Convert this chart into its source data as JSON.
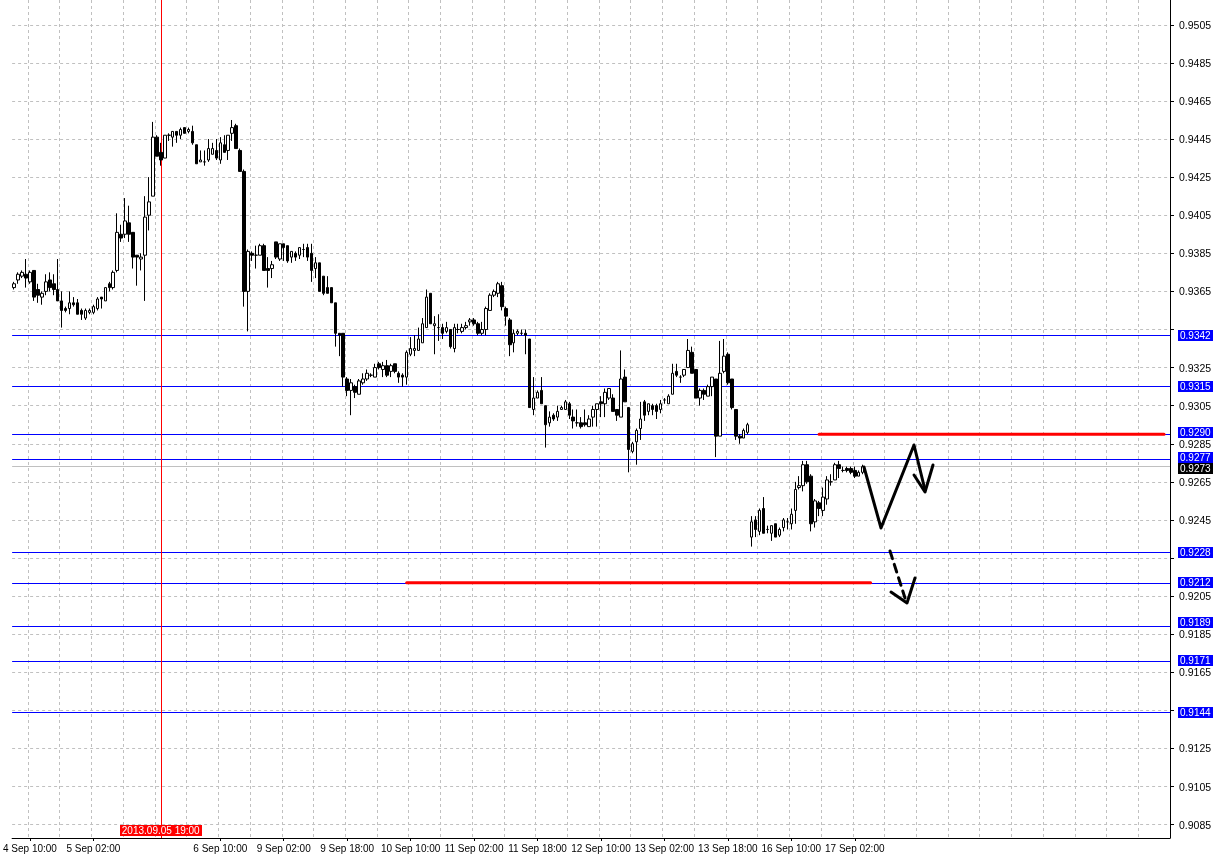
{
  "chart_data": {
    "type": "candlestick",
    "color": "#000000",
    "grid": true,
    "ylim": [
      0.9078,
      0.9518
    ],
    "yticks": [
      0.9085,
      0.9105,
      0.9125,
      {
        "value": 0.9145,
        "label": null
      },
      0.9165,
      0.9185,
      0.9205,
      {
        "value": 0.9225,
        "label": null
      },
      0.9245,
      0.9265,
      0.9285,
      0.9305,
      0.9325,
      {
        "value": 0.9345,
        "label": null
      },
      0.9365,
      0.9385,
      0.9405,
      0.9425,
      0.9445,
      0.9465,
      0.9485,
      0.9505
    ],
    "categories": [
      null,
      null,
      null,
      null,
      "4 Sep 10:00",
      null,
      null,
      null,
      null,
      null,
      null,
      null,
      null,
      null,
      null,
      null,
      null,
      null,
      null,
      null,
      "5 Sep 02:00",
      null,
      null,
      null,
      null,
      null,
      null,
      null,
      null,
      null,
      null,
      null,
      null,
      null,
      null,
      null,
      null,
      "2013.09.05 19:00",
      null,
      null,
      null,
      null,
      null,
      null,
      null,
      null,
      null,
      null,
      null,
      null,
      null,
      null,
      "6 Sep 10:00",
      null,
      null,
      null,
      null,
      null,
      null,
      null,
      null,
      null,
      null,
      null,
      null,
      null,
      null,
      null,
      "9 Sep 02:00",
      null,
      null,
      null,
      null,
      null,
      null,
      null,
      null,
      null,
      null,
      null,
      null,
      null,
      null,
      null,
      "9 Sep 18:00",
      null,
      null,
      null,
      null,
      null,
      null,
      null,
      null,
      null,
      null,
      null,
      null,
      null,
      null,
      null,
      "10 Sep 10:00",
      null,
      null,
      null,
      null,
      null,
      null,
      null,
      null,
      null,
      null,
      null,
      null,
      null,
      null,
      null,
      "11 Sep 02:00",
      null,
      null,
      null,
      null,
      null,
      null,
      null,
      null,
      null,
      null,
      null,
      null,
      null,
      null,
      null,
      "11 Sep 18:00",
      null,
      null,
      null,
      null,
      null,
      null,
      null,
      null,
      null,
      null,
      null,
      null,
      null,
      null,
      null,
      "12 Sep 10:00",
      null,
      null,
      null,
      null,
      null,
      null,
      null,
      null,
      null,
      null,
      null,
      null,
      null,
      null,
      null,
      "13 Sep 02:00",
      null,
      null,
      null,
      null,
      null,
      null,
      null,
      null,
      null,
      null,
      null,
      null,
      null,
      null,
      null,
      "13 Sep 18:00",
      null,
      null,
      null,
      null,
      null,
      null,
      null,
      null,
      null,
      null,
      null,
      null,
      null,
      null,
      null,
      "16 Sep 10:00",
      null,
      null,
      null,
      null,
      null,
      null,
      null,
      null,
      null,
      null,
      null,
      null,
      null,
      null,
      null,
      "17 Sep 02:00",
      null,
      null,
      null,
      null,
      null,
      null,
      null,
      null,
      null,
      null,
      null,
      null,
      null,
      null,
      null,
      null,
      null,
      null,
      null,
      null,
      null,
      null,
      null,
      null,
      null,
      null,
      null,
      null,
      null,
      null,
      null,
      null,
      null,
      null,
      null,
      null,
      null,
      null,
      null,
      null,
      null,
      null,
      null,
      null,
      null,
      null,
      null,
      null,
      null,
      null,
      null,
      null,
      null,
      null,
      null,
      null,
      null,
      null,
      null,
      null,
      null,
      null,
      null,
      null,
      null,
      null,
      null,
      null,
      null,
      null,
      null,
      null,
      null,
      null,
      null,
      null,
      null,
      null,
      null
    ],
    "ohlc": [
      [
        0.9367,
        0.937,
        0.9366,
        0.9369
      ],
      [
        0.9371,
        0.9375,
        0.9369,
        0.9374
      ],
      [
        0.9373,
        0.9376,
        0.9372,
        0.9375
      ],
      [
        0.9374,
        0.9382,
        0.9367,
        0.9372
      ],
      [
        0.937,
        0.9376,
        0.9369,
        0.9375
      ],
      [
        0.9376,
        0.9376,
        0.936,
        0.9362
      ],
      [
        0.9366,
        0.9369,
        0.9359,
        0.9363
      ],
      [
        0.9362,
        0.9365,
        0.9358,
        0.9364
      ],
      [
        0.9365,
        0.9374,
        0.9363,
        0.937
      ],
      [
        0.9371,
        0.9375,
        0.9365,
        0.9367
      ],
      [
        0.9369,
        0.9374,
        0.9363,
        0.9366
      ],
      [
        0.9366,
        0.9382,
        0.936,
        0.936
      ],
      [
        0.936,
        0.9365,
        0.9346,
        0.9355
      ],
      [
        0.9356,
        0.9357,
        0.9354,
        0.9355
      ],
      [
        0.9356,
        0.9365,
        0.9353,
        0.9359
      ],
      [
        0.9359,
        0.9362,
        0.9357,
        0.9358
      ],
      [
        0.9359,
        0.9361,
        0.9353,
        0.9353
      ],
      [
        0.9355,
        0.9356,
        0.935,
        0.9353
      ],
      [
        0.9351,
        0.9356,
        0.935,
        0.9355
      ],
      [
        0.9354,
        0.9356,
        0.9353,
        0.9355
      ],
      [
        0.9354,
        0.9358,
        0.9353,
        0.9357
      ],
      [
        0.9356,
        0.9362,
        0.9355,
        0.9361
      ],
      [
        0.9362,
        0.9362,
        0.9356,
        0.9361
      ],
      [
        0.936,
        0.9367,
        0.936,
        0.9367
      ],
      [
        0.9369,
        0.937,
        0.9365,
        0.9367
      ],
      [
        0.9367,
        0.9376,
        0.9366,
        0.9375
      ],
      [
        0.9376,
        0.9406,
        0.9375,
        0.9396
      ],
      [
        0.9395,
        0.94,
        0.9391,
        0.9393
      ],
      [
        0.9395,
        0.9414,
        0.9393,
        0.9402
      ],
      [
        0.9401,
        0.941,
        0.9391,
        0.9395
      ],
      [
        0.9396,
        0.9396,
        0.9377,
        0.9383
      ],
      [
        0.9384,
        0.9384,
        0.9368,
        0.9383
      ],
      [
        0.9382,
        0.9385,
        0.9376,
        0.9383
      ],
      [
        0.9384,
        0.9415,
        0.936,
        0.9404
      ],
      [
        0.9405,
        0.9425,
        0.9397,
        0.9412
      ],
      [
        0.9415,
        0.9454,
        0.9415,
        0.9446
      ],
      [
        0.9446,
        0.9447,
        0.9436,
        0.9436
      ],
      [
        0.9438,
        0.9443,
        0.9431,
        0.9434
      ],
      [
        0.9435,
        0.9447,
        0.9435,
        0.9447
      ],
      [
        0.9447,
        0.9448,
        0.9444,
        0.9447
      ],
      [
        0.9446,
        0.9449,
        0.9441,
        0.9449
      ],
      [
        0.9449,
        0.9449,
        0.9443,
        0.9447
      ],
      [
        0.9447,
        0.9451,
        0.9445,
        0.945
      ],
      [
        0.9451,
        0.9451,
        0.9448,
        0.9448
      ],
      [
        0.9449,
        0.9451,
        0.9448,
        0.945
      ],
      [
        0.9449,
        0.9452,
        0.9442,
        0.9443
      ],
      [
        0.9442,
        0.9442,
        0.9432,
        0.9432
      ],
      [
        0.9433,
        0.9439,
        0.9433,
        0.9434
      ],
      [
        0.9433,
        0.9439,
        0.9431,
        0.9433
      ],
      [
        0.9434,
        0.9445,
        0.9433,
        0.944
      ],
      [
        0.9437,
        0.9443,
        0.9437,
        0.944
      ],
      [
        0.9439,
        0.9445,
        0.9434,
        0.9435
      ],
      [
        0.9434,
        0.9446,
        0.9432,
        0.9443
      ],
      [
        0.9442,
        0.9447,
        0.9438,
        0.9438
      ],
      [
        0.9439,
        0.9447,
        0.9434,
        0.9447
      ],
      [
        0.9448,
        0.9455,
        0.9444,
        0.9451
      ],
      [
        0.9452,
        0.9453,
        0.944,
        0.944
      ],
      [
        0.9439,
        0.944,
        0.9428,
        0.9428
      ],
      [
        0.9428,
        0.9429,
        0.9357,
        0.9365
      ],
      [
        0.9365,
        0.9387,
        0.9344,
        0.9386
      ],
      [
        0.9385,
        0.9386,
        0.9381,
        0.9384
      ],
      [
        0.9384,
        0.9389,
        0.9377,
        0.9384
      ],
      [
        0.9384,
        0.939,
        0.9384,
        0.9389
      ],
      [
        0.9389,
        0.939,
        0.9376,
        0.9376
      ],
      [
        0.9377,
        0.9383,
        0.9367,
        0.9376
      ],
      [
        0.9377,
        0.9381,
        0.9372,
        0.9379
      ],
      [
        0.9391,
        0.9391,
        0.9382,
        0.9383
      ],
      [
        0.9382,
        0.939,
        0.9381,
        0.939
      ],
      [
        0.939,
        0.939,
        0.9381,
        0.9388
      ],
      [
        0.9389,
        0.9389,
        0.938,
        0.9381
      ],
      [
        0.9383,
        0.9386,
        0.938,
        0.9386
      ],
      [
        0.9385,
        0.9386,
        0.9381,
        0.9383
      ],
      [
        0.9384,
        0.9388,
        0.9382,
        0.9388
      ],
      [
        0.9387,
        0.939,
        0.9383,
        0.9387
      ],
      [
        0.9388,
        0.939,
        0.9381,
        0.9383
      ],
      [
        0.9385,
        0.939,
        0.937,
        0.9376
      ],
      [
        0.9377,
        0.9383,
        0.9372,
        0.938
      ],
      [
        0.938,
        0.938,
        0.9365,
        0.9365
      ],
      [
        0.9373,
        0.9373,
        0.9363,
        0.9364
      ],
      [
        0.9367,
        0.9373,
        0.9364,
        0.9364
      ],
      [
        0.9367,
        0.9367,
        0.9359,
        0.9359
      ],
      [
        0.9359,
        0.9359,
        0.9336,
        0.9343
      ],
      [
        0.9343,
        0.9343,
        0.9331,
        0.9342
      ],
      [
        0.9343,
        0.9343,
        0.9315,
        0.932
      ],
      [
        0.9319,
        0.932,
        0.931,
        0.9313
      ],
      [
        0.9313,
        0.9319,
        0.93,
        0.9317
      ],
      [
        0.9315,
        0.9316,
        0.9309,
        0.9312
      ],
      [
        0.9311,
        0.9319,
        0.9311,
        0.9318
      ],
      [
        0.9317,
        0.9322,
        0.9316,
        0.9319
      ],
      [
        0.9319,
        0.9324,
        0.9318,
        0.9322
      ],
      [
        0.9321,
        0.9322,
        0.932,
        0.9321
      ],
      [
        0.932,
        0.9327,
        0.932,
        0.9325
      ],
      [
        0.9327,
        0.9328,
        0.9324,
        0.9325
      ],
      [
        0.9324,
        0.9328,
        0.932,
        0.9326
      ],
      [
        0.9326,
        0.9329,
        0.932,
        0.9321
      ],
      [
        0.9323,
        0.9327,
        0.932,
        0.9326
      ],
      [
        0.9327,
        0.9327,
        0.9322,
        0.9323
      ],
      [
        0.9322,
        0.9323,
        0.9317,
        0.932
      ],
      [
        0.9321,
        0.9322,
        0.9315,
        0.932
      ],
      [
        0.932,
        0.9334,
        0.9316,
        0.9333
      ],
      [
        0.9332,
        0.9341,
        0.9331,
        0.9335
      ],
      [
        0.9334,
        0.9342,
        0.9331,
        0.9335
      ],
      [
        0.9334,
        0.9346,
        0.9334,
        0.934
      ],
      [
        0.9338,
        0.9351,
        0.9338,
        0.9348
      ],
      [
        0.9346,
        0.9366,
        0.9346,
        0.9362
      ],
      [
        0.9364,
        0.9364,
        0.9348,
        0.9348
      ],
      [
        0.9347,
        0.9352,
        0.9332,
        0.9348
      ],
      [
        0.9346,
        0.9353,
        0.9339,
        0.9346
      ],
      [
        0.9346,
        0.9348,
        0.934,
        0.9343
      ],
      [
        0.9344,
        0.9349,
        0.9343,
        0.9346
      ],
      [
        0.9345,
        0.9345,
        0.9335,
        0.9336
      ],
      [
        0.9335,
        0.9348,
        0.9333,
        0.9346
      ],
      [
        0.9345,
        0.9348,
        0.9343,
        0.9345
      ],
      [
        0.9344,
        0.9348,
        0.9343,
        0.9346
      ],
      [
        0.9346,
        0.9349,
        0.9345,
        0.9347
      ],
      [
        0.9349,
        0.9351,
        0.9347,
        0.935
      ],
      [
        0.935,
        0.9351,
        0.9347,
        0.9348
      ],
      [
        0.9348,
        0.9349,
        0.9342,
        0.9343
      ],
      [
        0.9343,
        0.9349,
        0.9342,
        0.9345
      ],
      [
        0.9345,
        0.9357,
        0.9342,
        0.9356
      ],
      [
        0.9355,
        0.9364,
        0.9355,
        0.9363
      ],
      [
        0.9363,
        0.9366,
        0.9362,
        0.9365
      ],
      [
        0.9364,
        0.937,
        0.9362,
        0.9369
      ],
      [
        0.9368,
        0.937,
        0.9355,
        0.9357
      ],
      [
        0.9356,
        0.9357,
        0.9347,
        0.9352
      ],
      [
        0.935,
        0.9351,
        0.9331,
        0.9337
      ],
      [
        0.9338,
        0.9345,
        0.9333,
        0.9343
      ],
      [
        0.9343,
        0.9345,
        0.9342,
        0.9344
      ],
      [
        0.9343,
        0.9345,
        0.9342,
        0.9343
      ],
      [
        0.9343,
        0.9345,
        0.9332,
        0.9342
      ],
      [
        0.934,
        0.934,
        0.9304,
        0.9304
      ],
      [
        0.9303,
        0.932,
        0.93,
        0.9309
      ],
      [
        0.9309,
        0.9313,
        0.9309,
        0.9312
      ],
      [
        0.9313,
        0.932,
        0.9306,
        0.9306
      ],
      [
        0.9305,
        0.9305,
        0.9283,
        0.9295
      ],
      [
        0.9296,
        0.9302,
        0.9294,
        0.9299
      ],
      [
        0.93,
        0.9301,
        0.9297,
        0.9298
      ],
      [
        0.9299,
        0.9305,
        0.9297,
        0.9302
      ],
      [
        0.9303,
        0.9305,
        0.9303,
        0.9304
      ],
      [
        0.9303,
        0.9308,
        0.9303,
        0.9307
      ],
      [
        0.9306,
        0.9307,
        0.9298,
        0.93
      ],
      [
        0.9299,
        0.9303,
        0.9293,
        0.9297
      ],
      [
        0.9296,
        0.9303,
        0.9294,
        0.9296
      ],
      [
        0.9296,
        0.9299,
        0.9293,
        0.9294
      ],
      [
        0.9296,
        0.9303,
        0.9294,
        0.9295
      ],
      [
        0.9294,
        0.93,
        0.9294,
        0.9298
      ],
      [
        0.9299,
        0.9305,
        0.9294,
        0.9303
      ],
      [
        0.9303,
        0.9306,
        0.9294,
        0.9306
      ],
      [
        0.9307,
        0.931,
        0.9299,
        0.9306
      ],
      [
        0.9306,
        0.9314,
        0.9299,
        0.9312
      ],
      [
        0.9309,
        0.9314,
        0.9308,
        0.9314
      ],
      [
        0.9309,
        0.9311,
        0.9302,
        0.9302
      ],
      [
        0.9303,
        0.9303,
        0.9297,
        0.93
      ],
      [
        0.9299,
        0.9334,
        0.9299,
        0.9319
      ],
      [
        0.932,
        0.9324,
        0.9307,
        0.9307
      ],
      [
        0.9304,
        0.9304,
        0.927,
        0.9282
      ],
      [
        0.9281,
        0.9286,
        0.928,
        0.9285
      ],
      [
        0.9286,
        0.9293,
        0.9274,
        0.9292
      ],
      [
        0.9293,
        0.9307,
        0.9287,
        0.9298
      ],
      [
        0.9307,
        0.9308,
        0.9297,
        0.93
      ],
      [
        0.9302,
        0.9306,
        0.93,
        0.9306
      ],
      [
        0.9305,
        0.9306,
        0.93,
        0.9303
      ],
      [
        0.9305,
        0.9306,
        0.9298,
        0.9302
      ],
      [
        0.9303,
        0.9308,
        0.9301,
        0.9306
      ],
      [
        0.9308,
        0.9309,
        0.9306,
        0.9308
      ],
      [
        0.9306,
        0.9311,
        0.9306,
        0.931
      ],
      [
        0.9311,
        0.9327,
        0.9311,
        0.9322
      ],
      [
        0.9323,
        0.9327,
        0.932,
        0.9321
      ],
      [
        0.932,
        0.9321,
        0.9317,
        0.932
      ],
      [
        0.9321,
        0.9324,
        0.932,
        0.9324
      ],
      [
        0.9325,
        0.934,
        0.9325,
        0.9334
      ],
      [
        0.9333,
        0.9336,
        0.9322,
        0.9322
      ],
      [
        0.9324,
        0.9324,
        0.9309,
        0.9309
      ],
      [
        0.9309,
        0.9314,
        0.9305,
        0.9313
      ],
      [
        0.9313,
        0.9314,
        0.9308,
        0.9311
      ],
      [
        0.931,
        0.9316,
        0.931,
        0.9315
      ],
      [
        0.9315,
        0.932,
        0.931,
        0.932
      ],
      [
        0.9319,
        0.9319,
        0.9278,
        0.9289
      ],
      [
        0.9289,
        0.9339,
        0.9289,
        0.9322
      ],
      [
        0.9323,
        0.934,
        0.9322,
        0.9331
      ],
      [
        0.9332,
        0.9333,
        0.9316,
        0.9317
      ],
      [
        0.9319,
        0.9319,
        0.9303,
        0.9304
      ],
      [
        0.9303,
        0.9303,
        0.9287,
        0.9289
      ],
      [
        0.9289,
        0.929,
        0.9285,
        0.9288
      ],
      [
        0.9288,
        0.9293,
        0.9288,
        0.9292
      ],
      [
        0.9291,
        0.9296,
        0.929,
        0.9295
      ],
      [
        0.9236,
        0.9247,
        0.9231,
        0.9244
      ],
      [
        0.9245,
        0.9247,
        0.9236,
        0.924
      ],
      [
        0.9239,
        0.9251,
        0.9237,
        0.925
      ],
      [
        0.9251,
        0.9257,
        0.9238,
        0.9238
      ],
      [
        0.924,
        0.9242,
        0.9238,
        0.924
      ],
      [
        0.9238,
        0.9242,
        0.9234,
        0.9242
      ],
      [
        0.9243,
        0.9243,
        0.9236,
        0.9236
      ],
      [
        0.9237,
        0.9241,
        0.9236,
        0.924
      ],
      [
        0.9241,
        0.9246,
        0.9239,
        0.9245
      ],
      [
        0.9244,
        0.9246,
        0.924,
        0.9244
      ],
      [
        0.9243,
        0.9251,
        0.924,
        0.9248
      ],
      [
        0.925,
        0.9265,
        0.9243,
        0.9261
      ],
      [
        0.9262,
        0.9268,
        0.9261,
        0.9263
      ],
      [
        0.9263,
        0.9276,
        0.926,
        0.9274
      ],
      [
        0.9274,
        0.9276,
        0.9264,
        0.9265
      ],
      [
        0.9268,
        0.9269,
        0.9239,
        0.9243
      ],
      [
        0.9244,
        0.9256,
        0.9241,
        0.9255
      ],
      [
        0.9254,
        0.9255,
        0.9247,
        0.9251
      ],
      [
        0.925,
        0.9262,
        0.9247,
        0.9257
      ],
      [
        0.9256,
        0.9268,
        0.9253,
        0.9266
      ],
      [
        0.9265,
        0.9269,
        0.9263,
        0.9265
      ],
      [
        0.9266,
        0.9275,
        0.9266,
        0.9274
      ],
      [
        0.9274,
        0.9276,
        0.9267,
        0.9272
      ],
      [
        0.9271,
        0.9273,
        0.927,
        0.9271
      ],
      [
        0.9272,
        0.9273,
        0.927,
        0.9271
      ],
      [
        0.9272,
        0.9273,
        0.9269,
        0.927
      ],
      [
        0.9271,
        0.9273,
        0.9267,
        0.9268
      ],
      [
        0.9268,
        0.9271,
        0.9268,
        0.927
      ],
      [
        0.927,
        0.9274,
        0.9269,
        0.9273
      ],
      null,
      null,
      null,
      null,
      null,
      null,
      null,
      null,
      null,
      null,
      null,
      null,
      null,
      null,
      null,
      null,
      null,
      null,
      null,
      null,
      null,
      null,
      null,
      null,
      null,
      null,
      null,
      null,
      null,
      null,
      null,
      null,
      null,
      null,
      null,
      null,
      null,
      null,
      null,
      null,
      null,
      null,
      null,
      null,
      null,
      null,
      null,
      null,
      null,
      null,
      null,
      null,
      null,
      null,
      null,
      null,
      null,
      null,
      null,
      null,
      null,
      null,
      null,
      null,
      null,
      null,
      null,
      null,
      null,
      null,
      null,
      null,
      null,
      null,
      null,
      null,
      null
    ],
    "series": [
      {
        "type": "line",
        "color": "#ff0000",
        "values": [
          null,
          null,
          null,
          null,
          null,
          null,
          null,
          null,
          null,
          null,
          null,
          null,
          null,
          null,
          null,
          null,
          null,
          null,
          null,
          null,
          null,
          null,
          null,
          null,
          null,
          null,
          null,
          null,
          null,
          null,
          null,
          null,
          null,
          null,
          null,
          null,
          null,
          null,
          null,
          null,
          null,
          null,
          null,
          null,
          null,
          null,
          null,
          null,
          null,
          null,
          null,
          null,
          null,
          null,
          null,
          null,
          null,
          null,
          null,
          null,
          null,
          null,
          null,
          null,
          null,
          null,
          null,
          null,
          null,
          null,
          null,
          null,
          null,
          null,
          null,
          null,
          null,
          null,
          null,
          null,
          null,
          null,
          null,
          null,
          null,
          null,
          null,
          null,
          null,
          null,
          null,
          null,
          null,
          null,
          null,
          null,
          null,
          null,
          null,
          0.9212,
          0.9212,
          0.9212,
          0.9212,
          0.9212,
          0.9212,
          0.9212,
          0.9212,
          0.9212,
          0.9212,
          0.9212,
          0.9212,
          0.9212,
          0.9212,
          0.9212,
          0.9212,
          0.9212,
          0.9212,
          0.9212,
          0.9212,
          0.9212,
          0.9212,
          0.9212,
          0.9212,
          0.9212,
          0.9212,
          0.9212,
          0.9212,
          0.9212,
          0.9212,
          0.9212,
          0.9212,
          0.9212,
          0.9212,
          0.9212,
          0.9212,
          0.9212,
          0.9212,
          0.9212,
          0.9212,
          0.9212,
          0.9212,
          0.9212,
          0.9212,
          0.9212,
          0.9212,
          0.9212,
          0.9212,
          0.9212,
          0.9212,
          0.9212,
          0.9212,
          0.9212,
          0.9212,
          0.9212,
          0.9212,
          0.9212,
          0.9212,
          0.9212,
          0.9212,
          0.9212,
          0.9212,
          0.9212,
          0.9212,
          0.9212,
          0.9212,
          0.9212,
          0.9212,
          0.9212,
          0.9212,
          0.9212,
          0.9212,
          0.9212,
          0.9212,
          0.9212,
          0.9212,
          0.9212,
          0.9212,
          0.9212,
          0.9212,
          0.9212,
          0.9212,
          0.9212,
          0.9212,
          0.9212,
          0.9212,
          0.9212,
          0.9212,
          0.9212,
          0.9212,
          0.9212,
          0.9212,
          0.9212,
          0.9212,
          0.9212,
          0.9212,
          0.9212,
          0.9212,
          0.9212,
          0.9212,
          0.9212,
          0.9212,
          0.9212,
          0.9212,
          0.9212,
          0.9212,
          0.9212,
          0.9212,
          0.9212,
          0.9212,
          0.9212,
          0.9212,
          0.9212,
          0.9212,
          0.9212,
          0.9212,
          0.9212,
          0.9212,
          null,
          null,
          null,
          null,
          null,
          null,
          null,
          null,
          null,
          null,
          null,
          null,
          null,
          null,
          null,
          null,
          null,
          null,
          null,
          null,
          null,
          null,
          null,
          null,
          null,
          null,
          null,
          null,
          null,
          null,
          null,
          null,
          null,
          null,
          null,
          null,
          null,
          null,
          null,
          null,
          null,
          null,
          null,
          null,
          null,
          null,
          null,
          null,
          null,
          null,
          null,
          null,
          null,
          null,
          null,
          null,
          null,
          null,
          null,
          null,
          null,
          null,
          null,
          null,
          null,
          null,
          null,
          null,
          null,
          null,
          null,
          null,
          null,
          null,
          null
        ]
      },
      {
        "type": "line",
        "color": "#ff0000",
        "values": [
          null,
          null,
          null,
          null,
          null,
          null,
          null,
          null,
          null,
          null,
          null,
          null,
          null,
          null,
          null,
          null,
          null,
          null,
          null,
          null,
          null,
          null,
          null,
          null,
          null,
          null,
          null,
          null,
          null,
          null,
          null,
          null,
          null,
          null,
          null,
          null,
          null,
          null,
          null,
          null,
          null,
          null,
          null,
          null,
          null,
          null,
          null,
          null,
          null,
          null,
          null,
          null,
          null,
          null,
          null,
          null,
          null,
          null,
          null,
          null,
          null,
          null,
          null,
          null,
          null,
          null,
          null,
          null,
          null,
          null,
          null,
          null,
          null,
          null,
          null,
          null,
          null,
          null,
          null,
          null,
          null,
          null,
          null,
          null,
          null,
          null,
          null,
          null,
          null,
          null,
          null,
          null,
          null,
          null,
          null,
          null,
          null,
          null,
          null,
          null,
          null,
          null,
          null,
          null,
          null,
          null,
          null,
          null,
          null,
          null,
          null,
          null,
          null,
          null,
          null,
          null,
          null,
          null,
          null,
          null,
          null,
          null,
          null,
          null,
          null,
          null,
          null,
          null,
          null,
          null,
          null,
          null,
          null,
          null,
          null,
          null,
          null,
          null,
          null,
          null,
          null,
          null,
          null,
          null,
          null,
          null,
          null,
          null,
          null,
          null,
          null,
          null,
          null,
          null,
          null,
          null,
          null,
          null,
          null,
          null,
          null,
          null,
          null,
          null,
          null,
          null,
          null,
          null,
          null,
          null,
          null,
          null,
          null,
          null,
          null,
          null,
          null,
          null,
          null,
          null,
          null,
          null,
          null,
          null,
          null,
          null,
          null,
          null,
          null,
          null,
          null,
          null,
          null,
          null,
          null,
          null,
          null,
          null,
          null,
          null,
          null,
          null,
          null,
          0.929,
          0.929,
          0.929,
          0.929,
          0.929,
          0.929,
          0.929,
          0.929,
          0.929,
          0.929,
          0.929,
          0.929,
          0.929,
          0.929,
          0.929,
          0.929,
          0.929,
          0.929,
          0.929,
          0.929,
          0.929,
          0.929,
          0.929,
          0.929,
          0.929,
          0.929,
          0.929,
          0.929,
          0.929,
          0.929,
          0.929,
          0.929,
          0.929,
          0.929,
          0.929,
          0.929,
          0.929,
          0.929,
          0.929,
          0.929,
          0.929,
          0.929,
          0.929,
          0.929,
          0.929,
          0.929,
          0.929,
          0.929,
          0.929,
          0.929,
          0.929,
          0.929,
          0.929,
          0.929,
          0.929,
          0.929,
          0.929,
          0.929,
          0.929,
          0.929,
          0.929,
          0.929,
          0.929,
          0.929,
          0.929,
          0.929,
          0.929,
          0.929,
          0.929,
          0.929,
          0.929,
          0.929,
          0.929,
          0.929,
          0.929,
          0.929,
          0.929,
          0.929,
          0.929,
          0.929,
          0.929,
          0.929,
          0.929,
          0.929,
          0.929,
          0.929,
          0.929,
          0.929,
          null
        ]
      }
    ],
    "ref_lines": [
      {
        "axis": "y",
        "value": 0.9342,
        "label": "0.9342",
        "color": "#0000ff"
      },
      {
        "axis": "y",
        "value": 0.9315,
        "label": "0.9315",
        "color": "#0000ff"
      },
      {
        "axis": "y",
        "value": 0.929,
        "label": "0.9290",
        "color": "#0000ff"
      },
      {
        "axis": "y",
        "value": 0.9277,
        "label": "0.9277",
        "color": "#0000ff"
      },
      {
        "axis": "y",
        "value": 0.9273,
        "label": "0.9273",
        "color": "#c0c0c0"
      },
      {
        "axis": "y",
        "value": 0.9228,
        "label": "0.9228",
        "color": "#0000ff"
      },
      {
        "axis": "y",
        "value": 0.9212,
        "label": "0.9212",
        "color": "#0000ff"
      },
      {
        "axis": "y",
        "value": 0.9189,
        "label": "0.9189",
        "color": "#0000ff"
      },
      {
        "axis": "y",
        "value": 0.9171,
        "label": "0.9171",
        "color": "#0000ff"
      },
      {
        "axis": "y",
        "value": 0.9144,
        "label": "0.9144",
        "color": "#0000ff"
      },
      {
        "axis": "x",
        "value": "2013.09.05 19:00",
        "color": "#ff0000"
      }
    ]
  }
}
